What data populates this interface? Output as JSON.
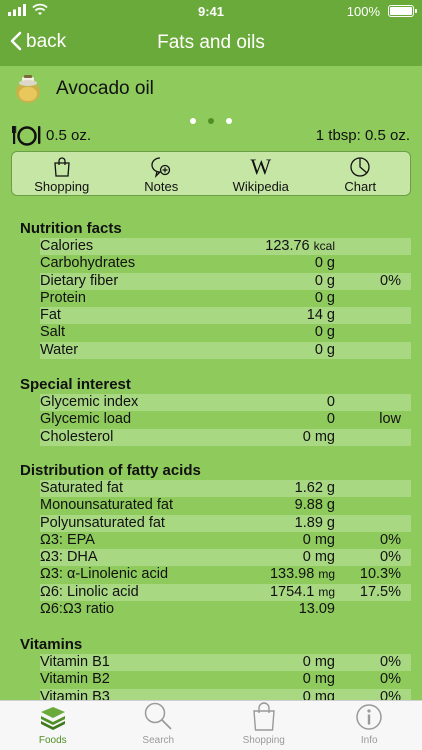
{
  "status": {
    "time": "9:41",
    "battery": "100%"
  },
  "nav": {
    "back": "back",
    "title": "Fats and oils"
  },
  "food": {
    "name": "Avocado oil"
  },
  "serving": {
    "amount": "0.5 oz.",
    "portion": "1 tbsp: 0.5 oz."
  },
  "toolbar": {
    "shopping": "Shopping",
    "notes": "Notes",
    "wikipedia": "Wikipedia",
    "chart": "Chart"
  },
  "sections": {
    "nutrition": {
      "title": "Nutrition facts",
      "rows": [
        {
          "name": "Calories",
          "value": "123.76",
          "unit": "kcal",
          "pct": ""
        },
        {
          "name": "Carbohydrates",
          "value": "0 g",
          "unit": "",
          "pct": ""
        },
        {
          "name": "Dietary fiber",
          "value": "0 g",
          "unit": "",
          "pct": "0%"
        },
        {
          "name": "Protein",
          "value": "0 g",
          "unit": "",
          "pct": ""
        },
        {
          "name": "Fat",
          "value": "14 g",
          "unit": "",
          "pct": ""
        },
        {
          "name": "Salt",
          "value": "0 g",
          "unit": "",
          "pct": ""
        },
        {
          "name": "Water",
          "value": "0 g",
          "unit": "",
          "pct": ""
        }
      ]
    },
    "special": {
      "title": "Special interest",
      "rows": [
        {
          "name": "Glycemic index",
          "value": "0",
          "unit": "",
          "pct": ""
        },
        {
          "name": "Glycemic load",
          "value": "0",
          "unit": "",
          "pct": "low"
        },
        {
          "name": "Cholesterol",
          "value": "0 mg",
          "unit": "",
          "pct": ""
        }
      ]
    },
    "fatty": {
      "title": "Distribution of fatty acids",
      "rows": [
        {
          "name": "Saturated fat",
          "value": "1.62 g",
          "unit": "",
          "pct": ""
        },
        {
          "name": "Monounsaturated fat",
          "value": "9.88 g",
          "unit": "",
          "pct": ""
        },
        {
          "name": "Polyunsaturated fat",
          "value": "1.89 g",
          "unit": "",
          "pct": ""
        },
        {
          "name": "Ω3: EPA",
          "value": "0 mg",
          "unit": "",
          "pct": "0%"
        },
        {
          "name": "Ω3: DHA",
          "value": "0 mg",
          "unit": "",
          "pct": "0%"
        },
        {
          "name": "Ω3: α-Linolenic acid",
          "value": "133.98",
          "unit": "mg",
          "pct": "10.3%"
        },
        {
          "name": "Ω6: Linolic acid",
          "value": "1754.1",
          "unit": "mg",
          "pct": "17.5%"
        },
        {
          "name": "Ω6:Ω3 ratio",
          "value": "13.09",
          "unit": "",
          "pct": ""
        }
      ]
    },
    "vitamins": {
      "title": "Vitamins",
      "rows": [
        {
          "name": "Vitamin B1",
          "value": "0 mg",
          "unit": "",
          "pct": "0%"
        },
        {
          "name": "Vitamin B2",
          "value": "0 mg",
          "unit": "",
          "pct": "0%"
        },
        {
          "name": "Vitamin B3",
          "value": "0 mg",
          "unit": "",
          "pct": "0%"
        }
      ]
    }
  },
  "tabs": {
    "foods": "Foods",
    "search": "Search",
    "shopping": "Shopping",
    "info": "Info"
  },
  "colors": {
    "bar": "#6aaa3a",
    "bg": "#8fcb5c",
    "stripe": "#a9d883",
    "active": "#4f8f25"
  }
}
